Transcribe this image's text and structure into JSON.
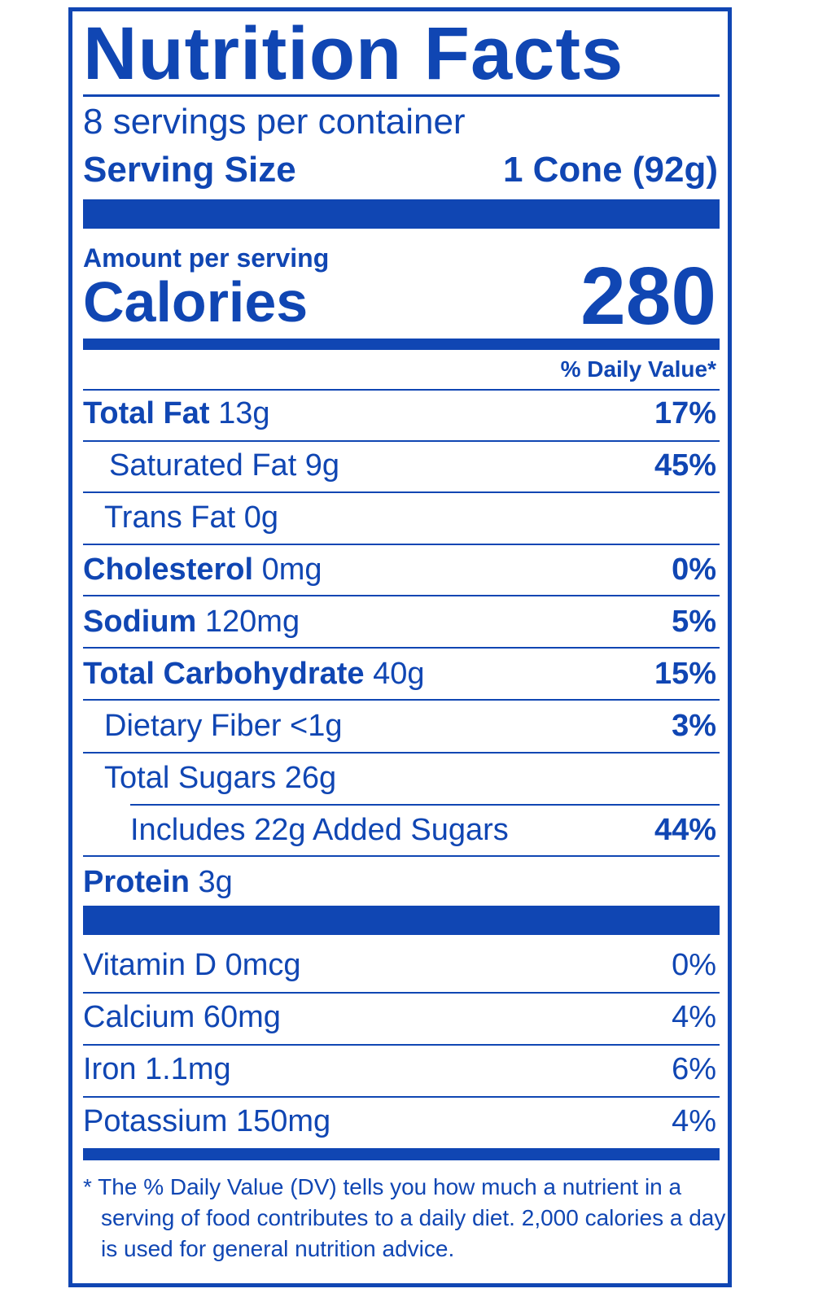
{
  "label": {
    "title": "Nutrition Facts",
    "servings_per_container": "8 servings per container",
    "serving_size_label": "Serving Size",
    "serving_size_value": "1 Cone (92g)",
    "amount_per_serving": "Amount per serving",
    "calories_label": "Calories",
    "calories_value": "280",
    "daily_value_header": "% Daily Value*",
    "nutrients": [
      {
        "name": "Total Fat",
        "amount": "13g",
        "dv": "17%"
      },
      {
        "name": "Saturated Fat 9g",
        "amount": "",
        "dv": "45%"
      },
      {
        "name": "Trans Fat 0g",
        "amount": "",
        "dv": ""
      },
      {
        "name": "Cholesterol",
        "amount": "0mg",
        "dv": "0%"
      },
      {
        "name": "Sodium",
        "amount": "120mg",
        "dv": "5%"
      },
      {
        "name": "Total Carbohydrate",
        "amount": "40g",
        "dv": "15%"
      },
      {
        "name": "Dietary Fiber <1g",
        "amount": "",
        "dv": "3%"
      },
      {
        "name": "Total Sugars 26g",
        "amount": "",
        "dv": ""
      },
      {
        "name": "Includes 22g Added Sugars",
        "amount": "",
        "dv": "44%"
      },
      {
        "name": "Protein",
        "amount": "3g",
        "dv": ""
      }
    ],
    "vitamins": [
      {
        "text": "Vitamin D 0mcg",
        "dv": "0%"
      },
      {
        "text": "Calcium 60mg",
        "dv": "4%"
      },
      {
        "text": "Iron 1.1mg",
        "dv": "6%"
      },
      {
        "text": "Potassium 150mg",
        "dv": "4%"
      }
    ],
    "footnote_line1": "* The % Daily Value (DV) tells you how much a nutrient in a",
    "footnote_line2": "serving of food contributes to a daily diet. 2,000 calories a day",
    "footnote_line3": "is used for general nutrition advice.",
    "ink_color": "#1046b3"
  }
}
